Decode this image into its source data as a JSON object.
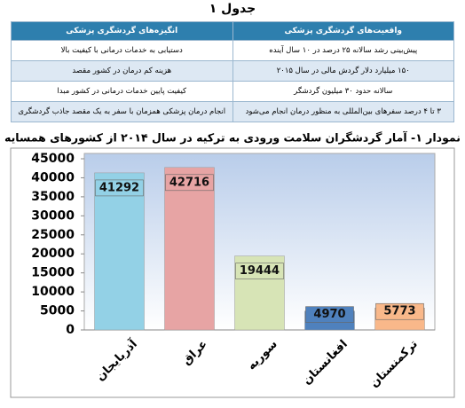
{
  "table": {
    "title": "جدول ۱",
    "headers": [
      "واقعیت‌های گردشگری پزشکی",
      "انگیزه‌های گردشگری پزشکی"
    ],
    "rows": [
      [
        "پیش‌بینی رشد سالانه ۲۵ درصد در ۱۰ سال آینده",
        "دستیابی به خدمات درمانی با کیفیت بالا"
      ],
      [
        "۱۵۰ میلیارد دلار گردش مالی در سال ۲۰۱۵",
        "هزینه کم درمان در کشور مقصد"
      ],
      [
        "سالانه حدود ۳۰ میلیون گردشگر",
        "کیفیت پایین خدمات درمانی در کشور مبدا"
      ],
      [
        "۳ تا ۴ درصد سفرهای بین‌المللی به منظور درمان انجام می‌شود",
        "انجام درمان پزشکی همزمان با سفر به یک مقصد جاذب گردشگری"
      ]
    ]
  },
  "chart_data": {
    "type": "bar",
    "title": "نمودار ۱- آمار گردشگران سلامت ورودی به ترکیه در سال ۲۰۱۴ از کشورهای همسایه",
    "categories": [
      "آذربایجان",
      "عراق",
      "سوریه",
      "افغانستان",
      "ترکمنستان"
    ],
    "values": [
      41292,
      42716,
      19444,
      4970,
      5773
    ],
    "colors": [
      "#93d1e6",
      "#e7a4a4",
      "#d7e4b6",
      "#4f81bd",
      "#f9b88a"
    ],
    "ylim": [
      0,
      45000
    ],
    "yticks": [
      0,
      5000,
      10000,
      15000,
      20000,
      25000,
      30000,
      35000,
      40000,
      45000
    ],
    "grid": false
  }
}
